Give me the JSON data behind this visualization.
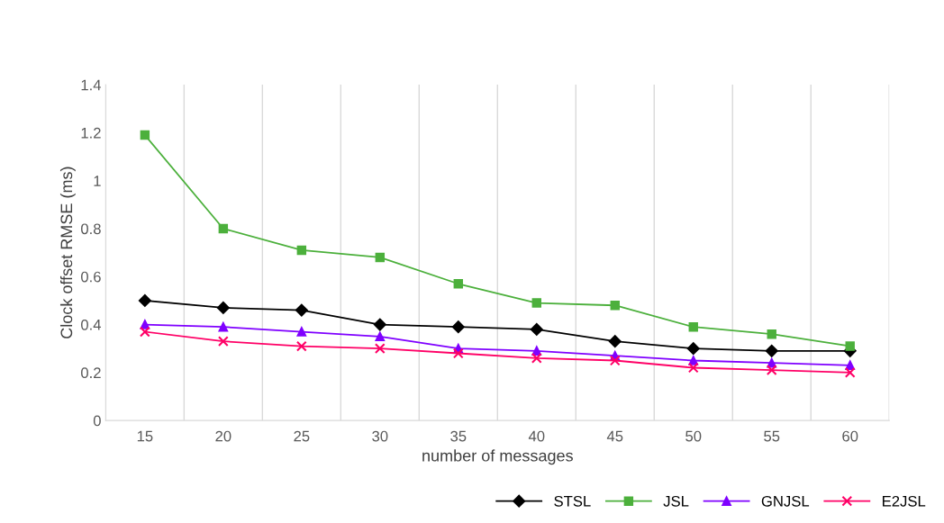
{
  "chart_data": {
    "type": "line",
    "xlabel": "number of messages",
    "ylabel": "Clock offset RMSE (ms)",
    "categories": [
      "15",
      "20",
      "25",
      "30",
      "35",
      "40",
      "45",
      "50",
      "55",
      "60"
    ],
    "series": [
      {
        "name": "STSL",
        "color": "#000000",
        "marker": "diamond",
        "values": [
          0.5,
          0.47,
          0.46,
          0.4,
          0.39,
          0.38,
          0.33,
          0.3,
          0.29,
          0.29
        ]
      },
      {
        "name": "JSL",
        "color": "#4cb03c",
        "marker": "square",
        "values": [
          1.19,
          0.8,
          0.71,
          0.68,
          0.57,
          0.49,
          0.48,
          0.39,
          0.36,
          0.31
        ]
      },
      {
        "name": "GNJSL",
        "color": "#7f00ff",
        "marker": "triangle",
        "values": [
          0.4,
          0.39,
          0.37,
          0.35,
          0.3,
          0.29,
          0.27,
          0.25,
          0.24,
          0.23
        ]
      },
      {
        "name": "E2JSL",
        "color": "#ff0066",
        "marker": "cross",
        "values": [
          0.37,
          0.33,
          0.31,
          0.3,
          0.28,
          0.26,
          0.25,
          0.22,
          0.21,
          0.2
        ]
      }
    ],
    "ylim": [
      0,
      1.4
    ],
    "yticks": [
      0,
      0.2,
      0.4,
      0.6,
      0.8,
      1,
      1.2,
      1.4
    ],
    "grid": "x",
    "legend": "bottom right",
    "line_style": "solid"
  }
}
